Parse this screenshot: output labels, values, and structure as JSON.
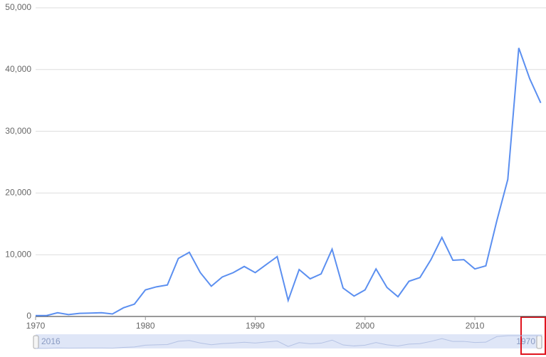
{
  "chart_data": {
    "type": "line",
    "x": [
      1970,
      1971,
      1972,
      1973,
      1974,
      1975,
      1976,
      1977,
      1978,
      1979,
      1980,
      1981,
      1982,
      1983,
      1984,
      1985,
      1986,
      1987,
      1988,
      1989,
      1990,
      1991,
      1992,
      1993,
      1994,
      1995,
      1996,
      1997,
      1998,
      1999,
      2000,
      2001,
      2002,
      2003,
      2004,
      2005,
      2006,
      2007,
      2008,
      2009,
      2010,
      2011,
      2012,
      2013,
      2014,
      2015,
      2016
    ],
    "series": [
      {
        "color": "#5b8ff0",
        "values": [
          150,
          150,
          600,
          300,
          500,
          550,
          600,
          400,
          1400,
          2000,
          4300,
          4800,
          5100,
          9400,
          10400,
          7100,
          4900,
          6400,
          7100,
          8100,
          7100,
          8400,
          9700,
          2600,
          7600,
          6100,
          6900,
          10900,
          4600,
          3300,
          4300,
          7700,
          4700,
          3200,
          5700,
          6300,
          9200,
          12800,
          9100,
          9200,
          7700,
          8200,
          15500,
          22200,
          43500,
          38500,
          34600
        ]
      }
    ],
    "xlim": [
      1970,
      2016
    ],
    "xticks": [
      1970,
      1980,
      1990,
      2000,
      2010
    ],
    "ylim": [
      0,
      50000
    ],
    "yticks": [
      0,
      {
        "value": 10000,
        "label": "10,000"
      },
      {
        "value": 20000,
        "label": "20,000"
      },
      {
        "value": 30000,
        "label": "30,000"
      },
      {
        "value": 40000,
        "label": "40,000"
      },
      {
        "value": 50000,
        "label": "50,000"
      }
    ],
    "grid": true,
    "range_selector": {
      "start_label": "2016",
      "end_label": "1970"
    }
  }
}
